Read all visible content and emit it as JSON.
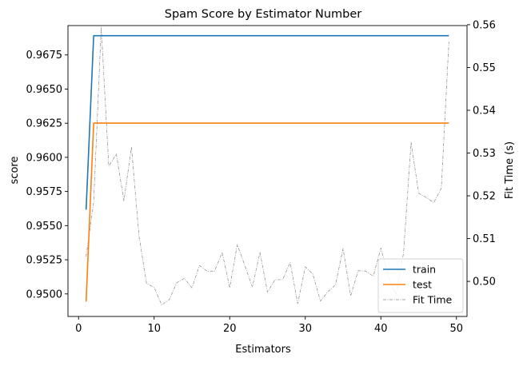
{
  "chart_data": {
    "type": "line",
    "title": "Spam Score by Estimator Number",
    "xlabel": "Estimators",
    "ylabel": "score",
    "y2label": "Fit Time (s)",
    "xlim": [
      -1.4,
      51.4
    ],
    "ylim": [
      0.94835,
      0.96965
    ],
    "y2lim": [
      0.4918,
      0.5598
    ],
    "xticks": [
      0,
      10,
      20,
      30,
      40,
      50
    ],
    "yticks": [
      0.95,
      0.9525,
      0.955,
      0.9575,
      0.96,
      0.9625,
      0.965,
      0.9675
    ],
    "ytick_labels": [
      "0.9500",
      "0.9525",
      "0.9550",
      "0.9575",
      "0.9600",
      "0.9625",
      "0.9650",
      "0.9675"
    ],
    "y2ticks": [
      0.5,
      0.51,
      0.52,
      0.53,
      0.54,
      0.55,
      0.56
    ],
    "y2tick_labels": [
      "0.50",
      "0.51",
      "0.52",
      "0.53",
      "0.54",
      "0.55",
      "0.56"
    ],
    "legend_position": "bottom-right",
    "series": [
      {
        "name": "train",
        "axis": "left",
        "color": "#1f77b4",
        "style": "solid",
        "x": [
          1,
          2,
          3,
          4,
          5,
          6,
          7,
          8,
          9,
          10,
          11,
          12,
          13,
          14,
          15,
          16,
          17,
          18,
          19,
          20,
          21,
          22,
          23,
          24,
          25,
          26,
          27,
          28,
          29,
          30,
          31,
          32,
          33,
          34,
          35,
          36,
          37,
          38,
          39,
          40,
          41,
          42,
          43,
          44,
          45,
          46,
          47,
          48,
          49
        ],
        "values": [
          0.95617,
          0.96891,
          0.96891,
          0.96891,
          0.96891,
          0.96891,
          0.96891,
          0.96891,
          0.96891,
          0.96891,
          0.96891,
          0.96891,
          0.96891,
          0.96891,
          0.96891,
          0.96891,
          0.96891,
          0.96891,
          0.96891,
          0.96891,
          0.96891,
          0.96891,
          0.96891,
          0.96891,
          0.96891,
          0.96891,
          0.96891,
          0.96891,
          0.96891,
          0.96891,
          0.96891,
          0.96891,
          0.96891,
          0.96891,
          0.96891,
          0.96891,
          0.96891,
          0.96891,
          0.96891,
          0.96891,
          0.96891,
          0.96891,
          0.96891,
          0.96891,
          0.96891,
          0.96891,
          0.96891,
          0.96891,
          0.96891
        ]
      },
      {
        "name": "test",
        "axis": "left",
        "color": "#ff7f0e",
        "style": "solid",
        "x": [
          1,
          2,
          3,
          4,
          5,
          6,
          7,
          8,
          9,
          10,
          11,
          12,
          13,
          14,
          15,
          16,
          17,
          18,
          19,
          20,
          21,
          22,
          23,
          24,
          25,
          26,
          27,
          28,
          29,
          30,
          31,
          32,
          33,
          34,
          35,
          36,
          37,
          38,
          39,
          40,
          41,
          42,
          43,
          44,
          45,
          46,
          47,
          48,
          49
        ],
        "values": [
          0.94944,
          0.96251,
          0.96251,
          0.96251,
          0.96251,
          0.96251,
          0.96251,
          0.96251,
          0.96251,
          0.96251,
          0.96251,
          0.96251,
          0.96251,
          0.96251,
          0.96251,
          0.96251,
          0.96251,
          0.96251,
          0.96251,
          0.96251,
          0.96251,
          0.96251,
          0.96251,
          0.96251,
          0.96251,
          0.96251,
          0.96251,
          0.96251,
          0.96251,
          0.96251,
          0.96251,
          0.96251,
          0.96251,
          0.96251,
          0.96251,
          0.96251,
          0.96251,
          0.96251,
          0.96251,
          0.96251,
          0.96251,
          0.96251,
          0.96251,
          0.96251,
          0.96251,
          0.96251,
          0.96251,
          0.96251,
          0.96251
        ]
      },
      {
        "name": "Fit Time",
        "axis": "right",
        "color": "#888888",
        "style": "dashdot",
        "x": [
          1,
          2,
          3,
          4,
          5,
          6,
          7,
          8,
          9,
          10,
          11,
          12,
          13,
          14,
          15,
          16,
          17,
          18,
          19,
          20,
          21,
          22,
          23,
          24,
          25,
          26,
          27,
          28,
          29,
          30,
          31,
          32,
          33,
          34,
          35,
          36,
          37,
          38,
          39,
          40,
          41,
          42,
          43,
          44,
          45,
          46,
          47,
          48,
          49
        ],
        "values": [
          0.5058,
          0.5185,
          0.5594,
          0.5269,
          0.5298,
          0.5188,
          0.5314,
          0.5106,
          0.4995,
          0.4986,
          0.4945,
          0.4957,
          0.4997,
          0.5007,
          0.4985,
          0.5037,
          0.5024,
          0.5024,
          0.5068,
          0.4985,
          0.5086,
          0.5037,
          0.4987,
          0.5068,
          0.4975,
          0.5004,
          0.5004,
          0.5044,
          0.4948,
          0.5034,
          0.5017,
          0.4954,
          0.4976,
          0.4992,
          0.5077,
          0.4966,
          0.5025,
          0.5024,
          0.5012,
          0.5078,
          0.5012,
          0.4968,
          0.5066,
          0.5325,
          0.5206,
          0.5196,
          0.5184,
          0.5218,
          0.556
        ]
      }
    ]
  }
}
